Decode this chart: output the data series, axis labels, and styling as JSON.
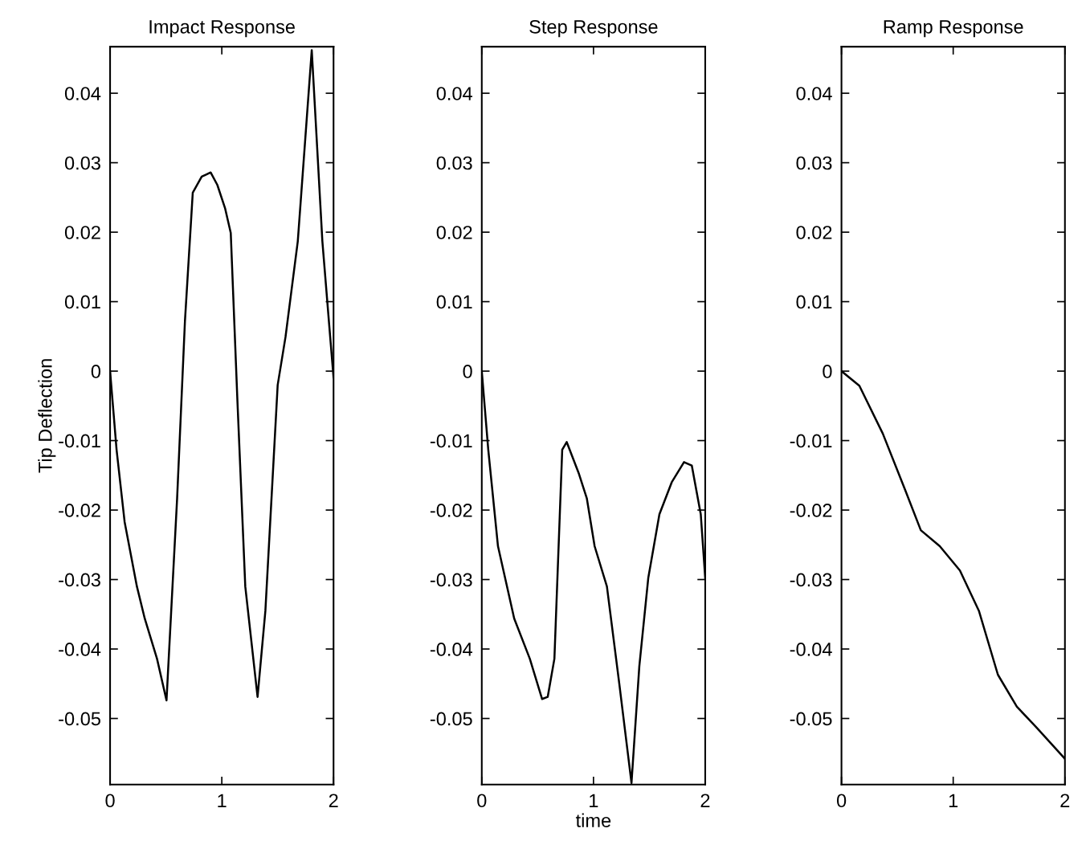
{
  "chart_data": [
    {
      "type": "line",
      "title": "Impact Response",
      "ylabel": "Tip Deflection",
      "xlim": [
        0,
        2
      ],
      "xticks": [
        0,
        1,
        2
      ],
      "ylim": [
        -0.0595,
        0.0467
      ],
      "yticks": [
        -0.05,
        -0.04,
        -0.03,
        -0.02,
        -0.01,
        0,
        0.01,
        0.02,
        0.03,
        0.04
      ],
      "grid": false,
      "series": [
        {
          "color": "#000000",
          "x": [
            0,
            0.058,
            0.13,
            0.24,
            0.31,
            0.42,
            0.505,
            0.6,
            0.67,
            0.74,
            0.82,
            0.9,
            0.96,
            1.03,
            1.08,
            1.14,
            1.21,
            1.32,
            1.39,
            1.5,
            1.57,
            1.68,
            1.805,
            1.9,
            1.97,
            2
          ],
          "values": [
            0,
            -0.0113,
            -0.0217,
            -0.031,
            -0.0356,
            -0.0414,
            -0.0474,
            -0.0183,
            0.0072,
            0.0257,
            0.028,
            0.0286,
            0.0268,
            0.0234,
            0.0199,
            -0.0044,
            -0.031,
            -0.0469,
            -0.0345,
            -0.002,
            0.0049,
            0.0187,
            0.0462,
            0.0187,
            0.0049,
            -0.0009
          ]
        }
      ]
    },
    {
      "type": "line",
      "title": "Step Response",
      "xlabel": "time",
      "xlim": [
        0,
        2
      ],
      "xticks": [
        0,
        1,
        2
      ],
      "ylim": [
        -0.0595,
        0.0467
      ],
      "yticks": [
        -0.05,
        -0.04,
        -0.03,
        -0.02,
        -0.01,
        0,
        0.01,
        0.02,
        0.03,
        0.04
      ],
      "grid": false,
      "series": [
        {
          "color": "#000000",
          "x": [
            0,
            0.058,
            0.145,
            0.29,
            0.43,
            0.54,
            0.59,
            0.65,
            0.72,
            0.76,
            0.87,
            0.94,
            1.01,
            1.12,
            1.23,
            1.34,
            1.41,
            1.49,
            1.59,
            1.7,
            1.81,
            1.88,
            1.96,
            2
          ],
          "values": [
            0,
            -0.0113,
            -0.0252,
            -0.0356,
            -0.0414,
            -0.0472,
            -0.0469,
            -0.0414,
            -0.0113,
            -0.0102,
            -0.0148,
            -0.0183,
            -0.0252,
            -0.031,
            -0.0449,
            -0.0593,
            -0.0425,
            -0.0298,
            -0.0206,
            -0.016,
            -0.0131,
            -0.0136,
            -0.0206,
            -0.0298
          ]
        }
      ]
    },
    {
      "type": "line",
      "title": "Ramp Response",
      "xlim": [
        0,
        2
      ],
      "xticks": [
        0,
        1,
        2
      ],
      "ylim": [
        -0.0595,
        0.0467
      ],
      "yticks": [
        -0.05,
        -0.04,
        -0.03,
        -0.02,
        -0.01,
        0,
        0.01,
        0.02,
        0.03,
        0.04
      ],
      "grid": false,
      "series": [
        {
          "color": "#000000",
          "x": [
            0,
            0.16,
            0.37,
            0.57,
            0.71,
            0.88,
            1.06,
            1.23,
            1.4,
            1.57,
            1.74,
            2
          ],
          "values": [
            0,
            -0.0021,
            -0.009,
            -0.0171,
            -0.0229,
            -0.0252,
            -0.0287,
            -0.0345,
            -0.0437,
            -0.0483,
            -0.0512,
            -0.0558
          ]
        }
      ]
    }
  ]
}
